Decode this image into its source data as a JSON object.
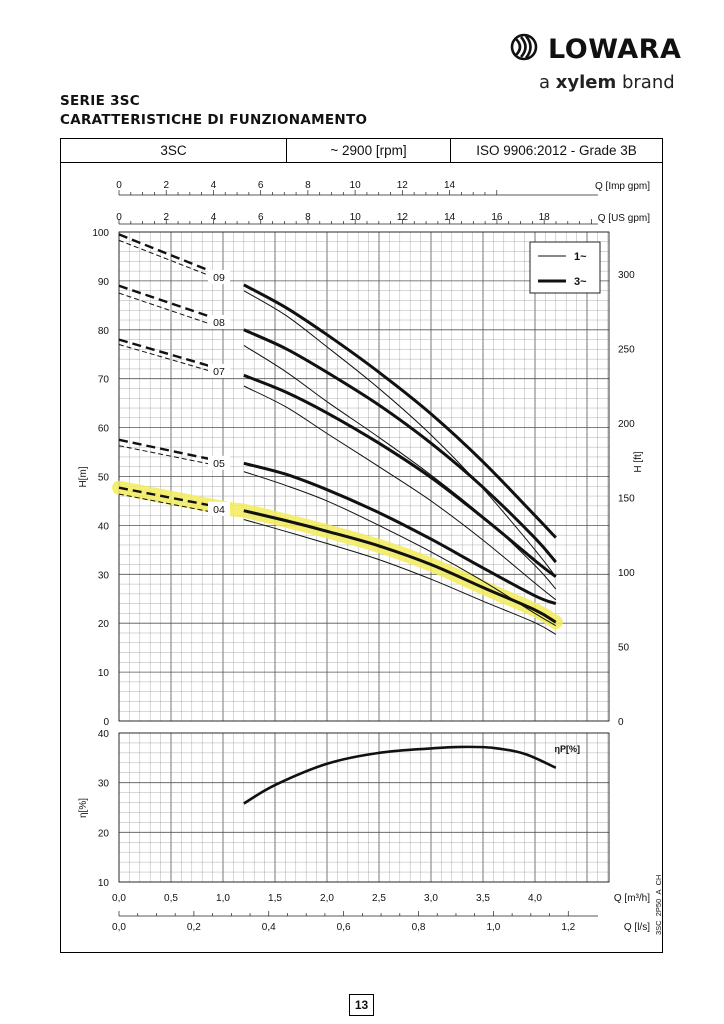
{
  "brand": {
    "name": "LOWARA",
    "tagline_pre": "a ",
    "tagline_bold": "xylem",
    "tagline_post": " brand"
  },
  "titles": {
    "series": "SERIE 3SC",
    "subtitle": "CARATTERISTICHE DI FUNZIONAMENTO"
  },
  "header": {
    "model": "3SC",
    "speed": "~ 2900 [rpm]",
    "standard": "ISO 9906:2012 - Grade 3B"
  },
  "page_number": "13",
  "drawing_code": "3SC_2P50_A_CH",
  "colors": {
    "highlight": "#f2ec5a",
    "curve": "#111111",
    "grid": "#8a8a8a"
  },
  "chart_data": [
    {
      "type": "line",
      "chart": "head",
      "ylabel": "H[m]",
      "y2label": "H [ft]",
      "ylim": [
        0,
        100
      ],
      "y2lim": [
        0,
        328.1
      ],
      "y_ticks": [
        0,
        10,
        20,
        30,
        40,
        50,
        60,
        70,
        80,
        90,
        100
      ],
      "y2_ticks": [
        0,
        50,
        100,
        150,
        200,
        250,
        300
      ],
      "xlim": [
        0,
        4.2
      ],
      "top_axes": [
        {
          "label": "Q [Imp gpm]",
          "ticks": [
            0,
            2,
            4,
            6,
            8,
            10,
            12,
            14
          ]
        },
        {
          "label": "Q [US gpm]",
          "ticks": [
            0,
            2,
            4,
            6,
            8,
            10,
            12,
            14,
            16,
            18
          ]
        }
      ],
      "legend": {
        "placement": "top-right",
        "entries": [
          {
            "label": "1~",
            "style": "thin"
          },
          {
            "label": "3~",
            "style": "thick"
          }
        ]
      },
      "highlight_curve": "04",
      "series": [
        {
          "name": "09",
          "dashed_3ph": [
            [
              0.0,
              99.5
            ],
            [
              1.0,
              91.0
            ]
          ],
          "dashed_1ph": [
            [
              0.0,
              98.3
            ],
            [
              1.0,
              90.0
            ]
          ],
          "solid_3ph": [
            [
              1.2,
              89.2
            ],
            [
              1.6,
              84.6
            ],
            [
              2.0,
              79.0
            ],
            [
              2.5,
              71.3
            ],
            [
              3.0,
              62.8
            ],
            [
              3.5,
              53.0
            ],
            [
              4.0,
              42.0
            ],
            [
              4.2,
              37.5
            ]
          ],
          "solid_1ph": [
            [
              1.2,
              88.0
            ],
            [
              1.6,
              83.0
            ],
            [
              2.0,
              76.5
            ],
            [
              2.5,
              68.0
            ],
            [
              3.0,
              58.5
            ],
            [
              3.5,
              47.5
            ],
            [
              4.0,
              35.0
            ],
            [
              4.2,
              29.5
            ]
          ]
        },
        {
          "name": "08",
          "dashed_3ph": [
            [
              0.0,
              89.0
            ],
            [
              1.0,
              81.8
            ]
          ],
          "dashed_1ph": [
            [
              0.0,
              87.5
            ],
            [
              1.0,
              80.3
            ]
          ],
          "solid_3ph": [
            [
              1.2,
              80.0
            ],
            [
              1.6,
              76.2
            ],
            [
              2.0,
              71.3
            ],
            [
              2.5,
              64.6
            ],
            [
              3.0,
              56.8
            ],
            [
              3.5,
              47.8
            ],
            [
              4.0,
              37.4
            ],
            [
              4.2,
              32.5
            ]
          ],
          "solid_1ph": [
            [
              1.2,
              76.8
            ],
            [
              1.6,
              71.5
            ],
            [
              2.0,
              65.3
            ],
            [
              2.5,
              58.0
            ],
            [
              3.0,
              50.3
            ],
            [
              3.5,
              41.8
            ],
            [
              4.0,
              31.8
            ],
            [
              4.2,
              27.0
            ]
          ]
        },
        {
          "name": "07",
          "dashed_3ph": [
            [
              0.0,
              78.0
            ],
            [
              1.0,
              71.8
            ]
          ],
          "dashed_1ph": [
            [
              0.0,
              77.0
            ],
            [
              1.0,
              70.8
            ]
          ],
          "solid_3ph": [
            [
              1.2,
              70.7
            ],
            [
              1.6,
              67.3
            ],
            [
              2.0,
              63.0
            ],
            [
              2.5,
              56.8
            ],
            [
              3.0,
              49.8
            ],
            [
              3.5,
              41.6
            ],
            [
              4.0,
              32.8
            ],
            [
              4.2,
              29.5
            ]
          ],
          "solid_1ph": [
            [
              1.2,
              68.5
            ],
            [
              1.6,
              64.3
            ],
            [
              2.0,
              58.8
            ],
            [
              2.5,
              52.0
            ],
            [
              3.0,
              45.0
            ],
            [
              3.5,
              37.0
            ],
            [
              4.0,
              28.2
            ],
            [
              4.2,
              24.8
            ]
          ]
        },
        {
          "name": "05",
          "dashed_3ph": [
            [
              0.0,
              57.5
            ],
            [
              1.0,
              53.0
            ]
          ],
          "dashed_1ph": [
            [
              0.0,
              56.3
            ],
            [
              1.0,
              52.0
            ]
          ],
          "solid_3ph": [
            [
              1.2,
              52.7
            ],
            [
              1.6,
              50.5
            ],
            [
              2.0,
              47.3
            ],
            [
              2.5,
              42.6
            ],
            [
              3.0,
              37.2
            ],
            [
              3.5,
              31.3
            ],
            [
              4.0,
              25.6
            ],
            [
              4.2,
              24.0
            ]
          ],
          "solid_1ph": [
            [
              1.2,
              51.0
            ],
            [
              1.6,
              48.2
            ],
            [
              2.0,
              45.0
            ],
            [
              2.5,
              40.0
            ],
            [
              3.0,
              34.6
            ],
            [
              3.5,
              28.6
            ],
            [
              4.0,
              22.0
            ],
            [
              4.2,
              19.5
            ]
          ]
        },
        {
          "name": "04",
          "dashed_3ph": [
            [
              0.0,
              47.7
            ],
            [
              1.0,
              43.6
            ]
          ],
          "dashed_1ph": [
            [
              0.0,
              46.4
            ],
            [
              1.0,
              42.3
            ]
          ],
          "solid_3ph": [
            [
              1.2,
              43.0
            ],
            [
              1.6,
              41.0
            ],
            [
              2.0,
              38.8
            ],
            [
              2.5,
              35.8
            ],
            [
              3.0,
              32.0
            ],
            [
              3.5,
              27.3
            ],
            [
              4.0,
              22.7
            ],
            [
              4.2,
              20.2
            ]
          ],
          "solid_1ph": [
            [
              1.2,
              41.2
            ],
            [
              1.6,
              38.8
            ],
            [
              2.0,
              36.3
            ],
            [
              2.5,
              33.0
            ],
            [
              3.0,
              29.0
            ],
            [
              3.5,
              24.5
            ],
            [
              4.0,
              20.1
            ],
            [
              4.2,
              17.7
            ]
          ]
        }
      ]
    },
    {
      "type": "line",
      "chart": "efficiency",
      "ylabel": "η[%]",
      "ylim": [
        10,
        40
      ],
      "y_ticks": [
        10,
        20,
        30,
        40
      ],
      "xlabel_m3h": "Q [m³/h]",
      "x_ticks_m3h": [
        "0,0",
        "0,5",
        "1,0",
        "1,5",
        "2,0",
        "2,5",
        "3,0",
        "3,5",
        "4,0"
      ],
      "x_ticks_m3h_values": [
        0,
        0.5,
        1.0,
        1.5,
        2.0,
        2.5,
        3.0,
        3.5,
        4.0
      ],
      "xlabel_ls": "Q [l/s]",
      "x_ticks_ls": [
        "0,0",
        "0,2",
        "0,4",
        "0,6",
        "0,8",
        "1,0",
        "1,2"
      ],
      "x_ticks_ls_values": [
        0,
        0.2,
        0.4,
        0.6,
        0.8,
        1.0,
        1.2
      ],
      "series": [
        {
          "name": "ηP[%]",
          "points": [
            [
              1.2,
              25.8
            ],
            [
              1.5,
              29.5
            ],
            [
              2.0,
              33.8
            ],
            [
              2.5,
              36.0
            ],
            [
              3.0,
              36.9
            ],
            [
              3.3,
              37.2
            ],
            [
              3.6,
              37.0
            ],
            [
              3.9,
              35.8
            ],
            [
              4.2,
              33.0
            ]
          ]
        }
      ]
    }
  ]
}
